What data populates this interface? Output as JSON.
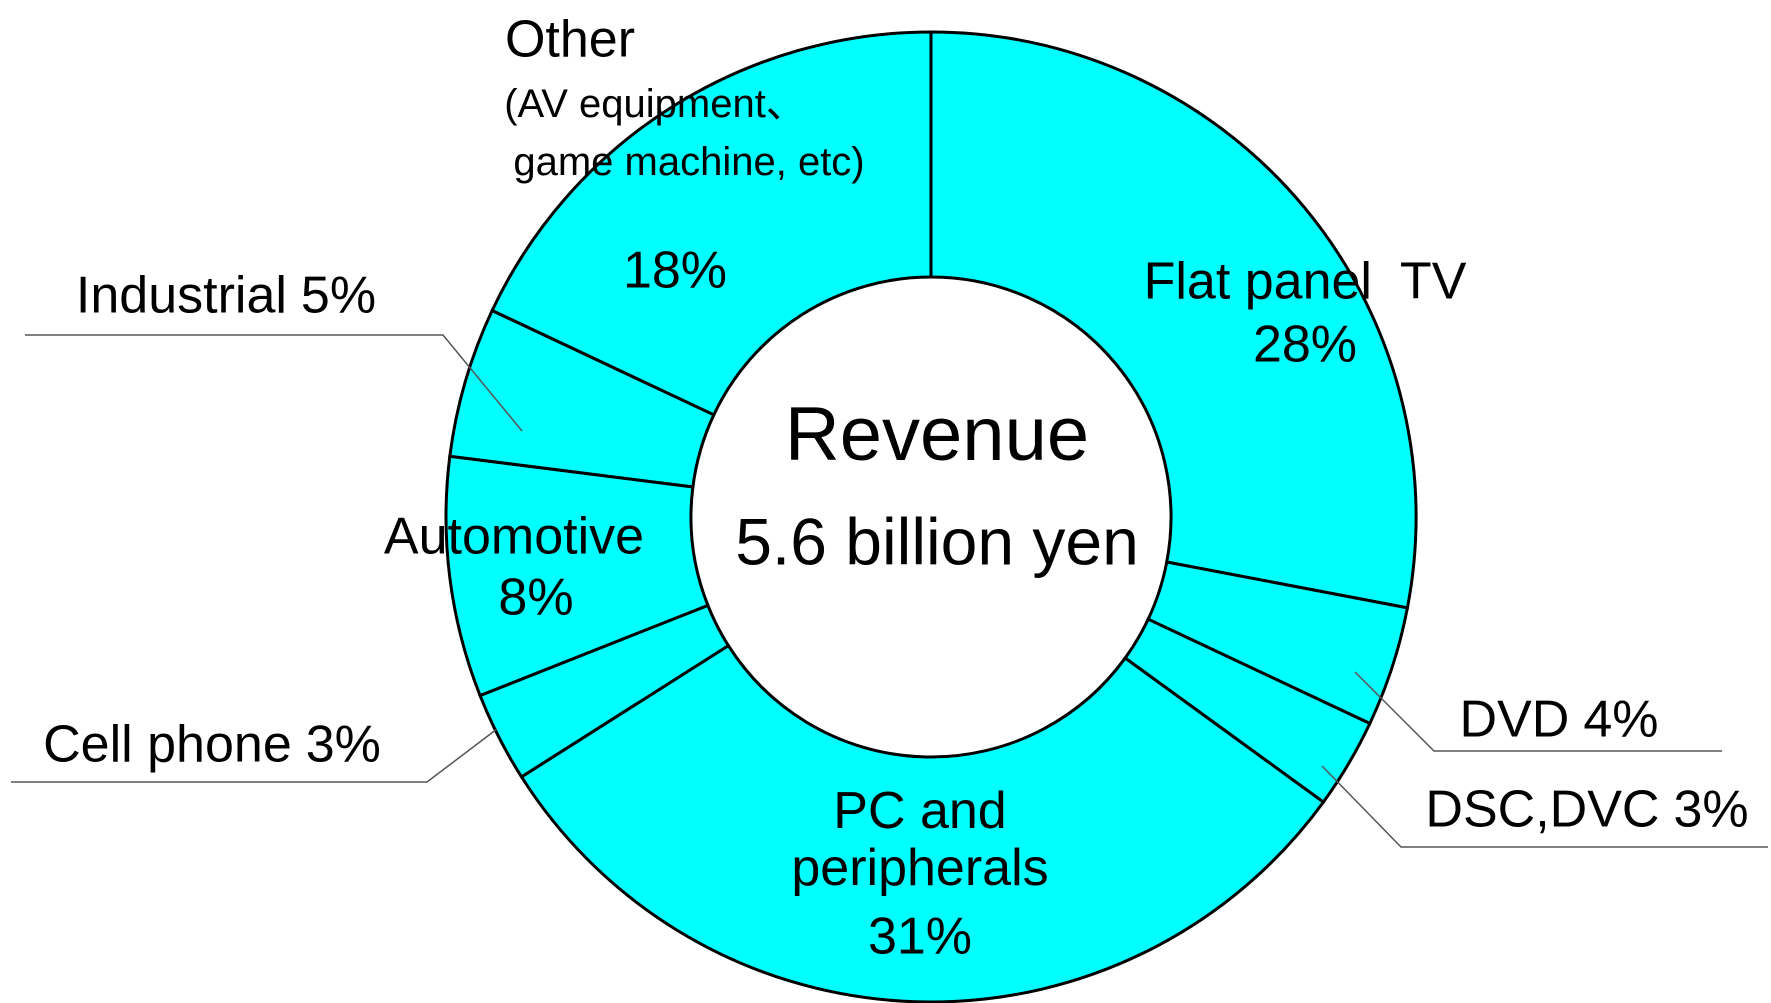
{
  "chart_data": {
    "type": "donut",
    "center_label": [
      "Revenue",
      "5.6 billion yen"
    ],
    "categories": [
      "Flat panel  TV",
      "DVD",
      "DSC,DVC",
      "PC and peripherals",
      "Cell phone",
      "Automotive",
      "Industrial",
      "Other"
    ],
    "values": [
      28,
      4,
      3,
      31,
      3,
      8,
      5,
      18
    ],
    "value_labels": [
      "28%",
      "4%",
      "3%",
      "31%",
      "3%",
      "8%",
      "5%",
      "18%"
    ],
    "annotations": [
      "(AV equipment、",
      "game machine, etc)"
    ],
    "color": "#00ffff",
    "edge_color": "#000000"
  }
}
